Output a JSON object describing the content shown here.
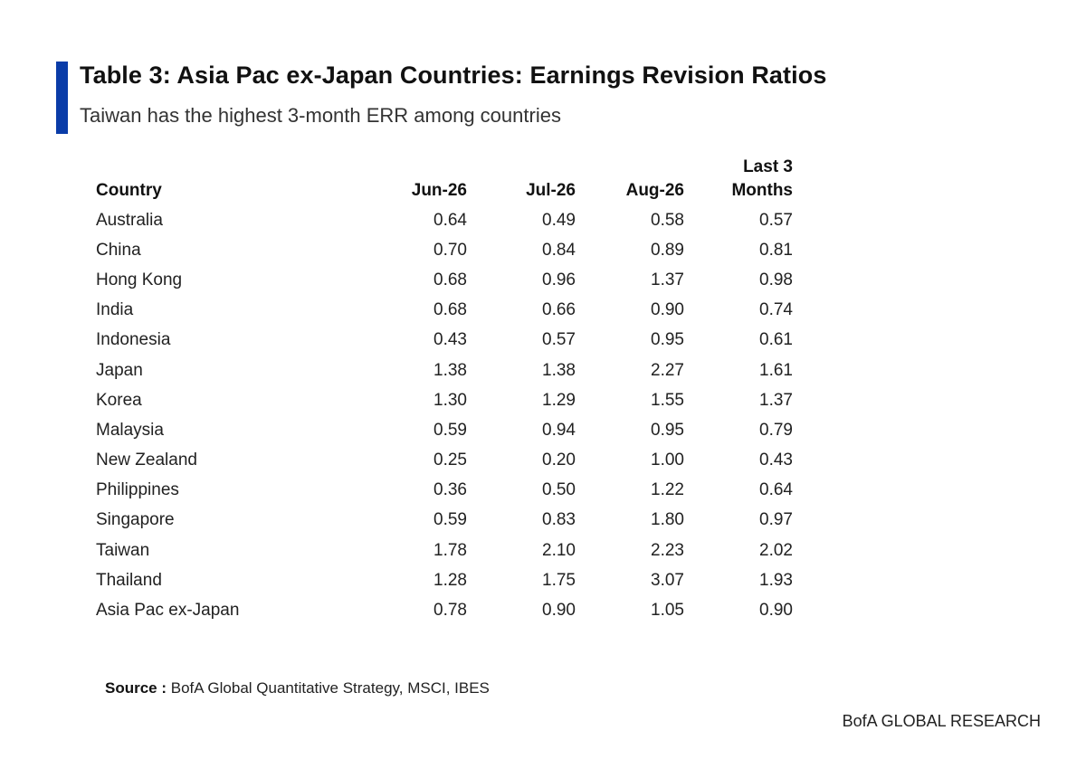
{
  "title": "Table 3: Asia Pac ex-Japan Countries: Earnings Revision Ratios",
  "subtitle": "Taiwan has the highest 3-month ERR among countries",
  "accent_color": "#0a3ca8",
  "table": {
    "headers": {
      "country": "Country",
      "jun": "Jun-26",
      "jul": "Jul-26",
      "aug": "Aug-26",
      "last3_line1": "Last 3",
      "last3_line2": "Months"
    },
    "rows": [
      {
        "country": "Australia",
        "jun": "0.64",
        "jul": "0.49",
        "aug": "0.58",
        "last3": "0.57"
      },
      {
        "country": "China",
        "jun": "0.70",
        "jul": "0.84",
        "aug": "0.89",
        "last3": "0.81"
      },
      {
        "country": "Hong Kong",
        "jun": "0.68",
        "jul": "0.96",
        "aug": "1.37",
        "last3": "0.98"
      },
      {
        "country": "India",
        "jun": "0.68",
        "jul": "0.66",
        "aug": "0.90",
        "last3": "0.74"
      },
      {
        "country": "Indonesia",
        "jun": "0.43",
        "jul": "0.57",
        "aug": "0.95",
        "last3": "0.61"
      },
      {
        "country": "Japan",
        "jun": "1.38",
        "jul": "1.38",
        "aug": "2.27",
        "last3": "1.61"
      },
      {
        "country": "Korea",
        "jun": "1.30",
        "jul": "1.29",
        "aug": "1.55",
        "last3": "1.37"
      },
      {
        "country": "Malaysia",
        "jun": "0.59",
        "jul": "0.94",
        "aug": "0.95",
        "last3": "0.79"
      },
      {
        "country": "New Zealand",
        "jun": "0.25",
        "jul": "0.20",
        "aug": "1.00",
        "last3": "0.43"
      },
      {
        "country": "Philippines",
        "jun": "0.36",
        "jul": "0.50",
        "aug": "1.22",
        "last3": "0.64"
      },
      {
        "country": "Singapore",
        "jun": "0.59",
        "jul": "0.83",
        "aug": "1.80",
        "last3": "0.97"
      },
      {
        "country": "Taiwan",
        "jun": "1.78",
        "jul": "2.10",
        "aug": "2.23",
        "last3": "2.02"
      },
      {
        "country": "Thailand",
        "jun": "1.28",
        "jul": "1.75",
        "aug": "3.07",
        "last3": "1.93"
      },
      {
        "country": "Asia Pac ex-Japan",
        "jun": "0.78",
        "jul": "0.90",
        "aug": "1.05",
        "last3": "0.90"
      }
    ]
  },
  "source": {
    "label": "Source :",
    "text": "BofA Global Quantitative Strategy, MSCI, IBES"
  },
  "brand": "BofA GLOBAL RESEARCH"
}
